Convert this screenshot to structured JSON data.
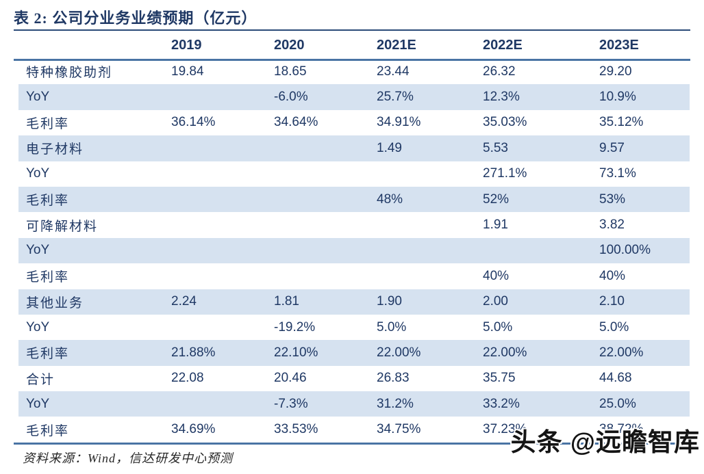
{
  "title": {
    "text": "表 2:  公司分业务业绩预期（亿元）"
  },
  "table": {
    "columns": [
      "",
      "2019",
      "2020",
      "2021E",
      "2022E",
      "2023E"
    ],
    "rows": [
      {
        "label": "特种橡胶助剂",
        "label_lang": "cn",
        "values": [
          "19.84",
          "18.65",
          "23.44",
          "26.32",
          "29.20"
        ]
      },
      {
        "label": "YoY",
        "label_lang": "en",
        "values": [
          "",
          "-6.0%",
          "25.7%",
          "12.3%",
          "10.9%"
        ]
      },
      {
        "label": "毛利率",
        "label_lang": "cn",
        "values": [
          "36.14%",
          "34.64%",
          "34.91%",
          "35.03%",
          "35.12%"
        ]
      },
      {
        "label": "电子材料",
        "label_lang": "cn",
        "values": [
          "",
          "",
          "1.49",
          "5.53",
          "9.57"
        ]
      },
      {
        "label": "YoY",
        "label_lang": "en",
        "values": [
          "",
          "",
          "",
          "271.1%",
          "73.1%"
        ]
      },
      {
        "label": "毛利率",
        "label_lang": "cn",
        "values": [
          "",
          "",
          "48%",
          "52%",
          "53%"
        ]
      },
      {
        "label": "可降解材料",
        "label_lang": "cn",
        "values": [
          "",
          "",
          "",
          "1.91",
          "3.82"
        ]
      },
      {
        "label": "YoY",
        "label_lang": "en",
        "values": [
          "",
          "",
          "",
          "",
          "100.00%"
        ]
      },
      {
        "label": "毛利率",
        "label_lang": "cn",
        "values": [
          "",
          "",
          "",
          "40%",
          "40%"
        ]
      },
      {
        "label": "其他业务",
        "label_lang": "cn",
        "values": [
          "2.24",
          "1.81",
          "1.90",
          "2.00",
          "2.10"
        ]
      },
      {
        "label": "YoY",
        "label_lang": "en",
        "values": [
          "",
          "-19.2%",
          "5.0%",
          "5.0%",
          "5.0%"
        ]
      },
      {
        "label": "毛利率",
        "label_lang": "cn",
        "values": [
          "21.88%",
          "22.10%",
          "22.00%",
          "22.00%",
          "22.00%"
        ]
      },
      {
        "label": "合计",
        "label_lang": "cn",
        "values": [
          "22.08",
          "20.46",
          "26.83",
          "35.75",
          "44.68"
        ]
      },
      {
        "label": "YoY",
        "label_lang": "en",
        "values": [
          "",
          "-7.3%",
          "31.2%",
          "33.2%",
          "25.0%"
        ]
      },
      {
        "label": "毛利率",
        "label_lang": "cn",
        "values": [
          "34.69%",
          "33.53%",
          "34.75%",
          "37.23%",
          "38.72%"
        ]
      }
    ]
  },
  "footer": {
    "source": "资料来源：Wind，信达研发中心预测"
  },
  "watermark": {
    "text": "头条 @远瞻智库"
  },
  "colors": {
    "navy_text": "#1f3864",
    "row_stripe": "#d6e2f0",
    "rule_steel": "#4a74a4",
    "rule_title": "#2a4a78",
    "footer_text": "#262626",
    "watermark_text": "#141414"
  }
}
